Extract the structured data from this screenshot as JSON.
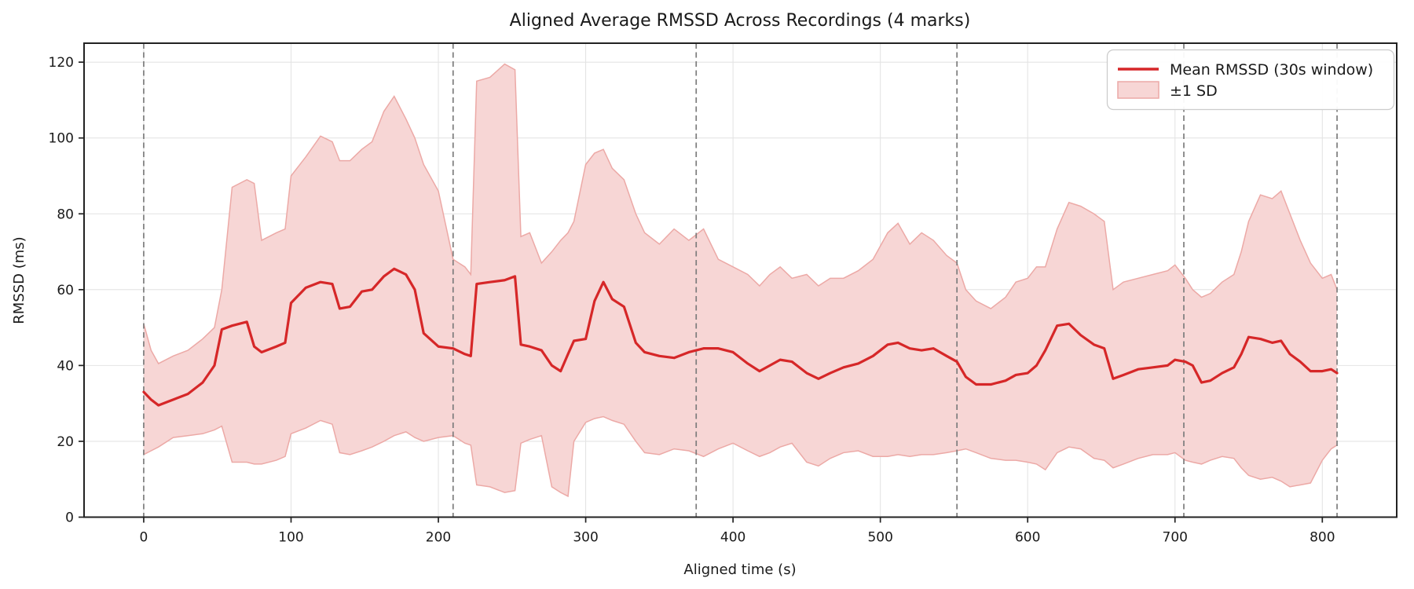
{
  "figure": {
    "title": "Aligned Average RMSSD Across Recordings (4 marks)",
    "xlabel": "Aligned time (s)",
    "ylabel": "RMSSD (ms)"
  },
  "legend": {
    "position": "upper right",
    "items": [
      {
        "label": "Mean RMSSD (30s window)",
        "swatch": "line"
      },
      {
        "label": "±1 SD",
        "swatch": "patch"
      }
    ]
  },
  "chart_data": {
    "type": "line",
    "title": "Aligned Average RMSSD Across Recordings (4 marks)",
    "xlabel": "Aligned time (s)",
    "ylabel": "RMSSD (ms)",
    "xlim": [
      -40.5,
      850.5
    ],
    "ylim": [
      0,
      125
    ],
    "xticks": [
      0,
      100,
      200,
      300,
      400,
      500,
      600,
      700,
      800
    ],
    "yticks": [
      0,
      20,
      40,
      60,
      80,
      100,
      120
    ],
    "grid": true,
    "legend_position": "upper right",
    "mark_lines_s": [
      0,
      210,
      375,
      552,
      706,
      810
    ],
    "t_s": [
      0,
      5,
      10,
      20,
      30,
      40,
      48,
      53,
      60,
      70,
      75,
      80,
      90,
      96,
      100,
      110,
      120,
      128,
      133,
      140,
      148,
      155,
      163,
      170,
      178,
      184,
      190,
      200,
      210,
      218,
      222,
      226,
      235,
      245,
      252,
      256,
      262,
      270,
      277,
      283,
      288,
      292,
      300,
      306,
      312,
      318,
      326,
      334,
      340,
      350,
      360,
      370,
      380,
      390,
      400,
      410,
      418,
      425,
      432,
      440,
      450,
      458,
      466,
      475,
      485,
      495,
      505,
      512,
      520,
      528,
      536,
      545,
      552,
      558,
      565,
      575,
      585,
      592,
      600,
      606,
      612,
      620,
      628,
      636,
      645,
      652,
      658,
      665,
      675,
      685,
      695,
      700,
      707,
      712,
      718,
      724,
      732,
      740,
      745,
      750,
      758,
      766,
      772,
      778,
      785,
      792,
      800,
      806,
      810
    ],
    "series": [
      {
        "name": "Mean RMSSD (30s window)",
        "values": [
          33,
          31,
          29.5,
          31,
          32.5,
          35.5,
          40,
          49.5,
          50.5,
          51.5,
          45,
          43.5,
          45,
          46,
          56.5,
          60.5,
          62,
          61.5,
          55,
          55.5,
          59.5,
          60,
          63.5,
          65.5,
          64,
          60,
          48.5,
          45,
          44.5,
          43,
          42.5,
          61.5,
          62,
          62.5,
          63.5,
          45.5,
          45,
          44,
          40,
          38.5,
          43,
          46.5,
          47,
          57,
          62,
          57.5,
          55.5,
          46,
          43.5,
          42.5,
          42,
          43.5,
          44.5,
          44.5,
          43.5,
          40.5,
          38.5,
          40,
          41.5,
          41,
          38,
          36.5,
          38,
          39.5,
          40.5,
          42.5,
          45.5,
          46,
          44.5,
          44,
          44.5,
          42.5,
          41,
          37,
          35,
          35,
          36,
          37.5,
          38,
          40,
          44,
          50.5,
          51,
          48,
          45.5,
          44.5,
          36.5,
          37.5,
          39,
          39.5,
          40,
          41.5,
          41,
          40,
          35.5,
          36,
          38,
          39.5,
          43,
          47.5,
          47,
          46,
          46.5,
          43,
          41,
          38.5,
          38.5,
          39,
          38
        ]
      },
      {
        "name": "+1 SD upper envelope",
        "values": [
          51,
          44,
          40.5,
          42.5,
          44,
          47,
          50,
          60,
          87,
          89,
          88,
          73,
          75,
          76,
          90,
          95,
          100.5,
          99,
          94,
          94,
          97,
          99,
          107,
          111,
          105,
          100,
          93,
          86,
          68,
          66,
          64,
          115,
          116,
          119.5,
          118,
          74,
          75,
          67,
          70,
          73,
          75,
          78,
          93,
          96,
          97,
          92,
          89,
          80,
          75,
          72,
          76,
          73,
          76,
          68,
          66,
          64,
          61,
          64,
          66,
          63,
          64,
          61,
          63,
          63,
          65,
          68,
          75,
          77.5,
          72,
          75,
          73,
          69,
          67,
          60,
          57,
          55,
          58,
          62,
          63,
          66,
          66,
          76,
          83,
          82,
          80,
          78,
          60,
          62,
          63,
          64,
          65,
          66.5,
          63,
          60,
          58,
          59,
          62,
          64,
          70,
          78,
          85,
          84,
          86,
          80,
          73,
          67,
          63,
          64,
          60
        ]
      },
      {
        "name": "-1 SD lower envelope",
        "values": [
          16.5,
          17.5,
          18.5,
          21,
          21.5,
          22,
          23,
          24,
          14.5,
          14.5,
          14,
          14,
          15,
          16,
          22,
          23.5,
          25.5,
          24.5,
          17,
          16.5,
          17.5,
          18.5,
          20,
          21.5,
          22.5,
          21,
          20,
          21,
          21.5,
          19.5,
          19,
          8.5,
          8,
          6.5,
          7,
          19.5,
          20.5,
          21.5,
          8,
          6.5,
          5.5,
          20,
          25,
          26,
          26.5,
          25.5,
          24.5,
          20,
          17,
          16.5,
          18,
          17.5,
          16,
          18,
          19.5,
          17.5,
          16,
          17,
          18.5,
          19.5,
          14.5,
          13.5,
          15.5,
          17,
          17.5,
          16,
          16,
          16.5,
          16,
          16.5,
          16.5,
          17,
          17.5,
          18,
          17,
          15.5,
          15,
          15,
          14.5,
          14,
          12.5,
          17,
          18.5,
          18,
          15.5,
          15,
          13,
          14,
          15.5,
          16.5,
          16.5,
          17,
          15,
          14.5,
          14,
          15,
          16,
          15.5,
          13,
          11,
          10,
          10.5,
          9.5,
          8,
          8.5,
          9,
          15,
          18,
          19
        ]
      }
    ],
    "colors": {
      "mean_line": "#d62728",
      "band_fill": "#f7d6d5",
      "band_edge": "#eca9a6",
      "mark_line": "#7c7c7c",
      "grid": "#e4e4e4",
      "spine": "#222222",
      "text": "#1a1a1a"
    }
  }
}
